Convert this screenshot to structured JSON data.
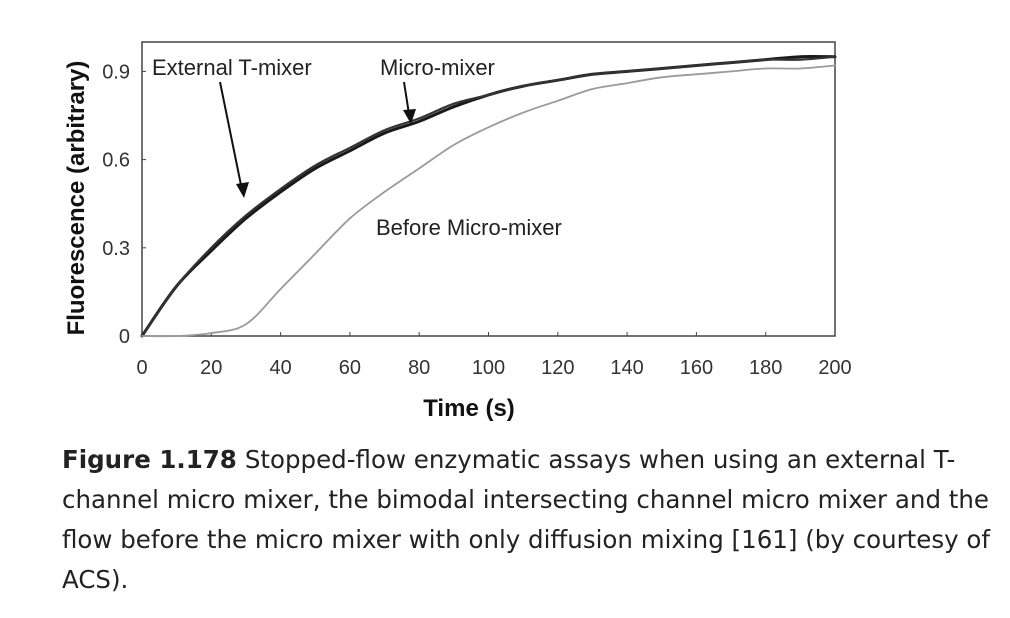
{
  "chart_data": {
    "type": "line",
    "title": "",
    "xlabel": "Time (s)",
    "ylabel": "Fluorescence (arbitrary)",
    "xlim": [
      0,
      200
    ],
    "ylim": [
      0,
      1.0
    ],
    "x_ticks": [
      0,
      20,
      40,
      60,
      80,
      100,
      120,
      140,
      160,
      180,
      200
    ],
    "y_ticks": [
      0,
      0.3,
      0.6,
      0.9
    ],
    "y_tick_labels": [
      "0",
      "0.3",
      "0.6",
      "0.9"
    ],
    "grid": false,
    "x": [
      0,
      10,
      20,
      30,
      40,
      50,
      60,
      70,
      80,
      90,
      100,
      110,
      120,
      130,
      140,
      150,
      160,
      170,
      180,
      190,
      200
    ],
    "series": [
      {
        "name": "External T-mixer",
        "color": "#1a1a1a",
        "values": [
          0.0,
          0.17,
          0.29,
          0.4,
          0.49,
          0.57,
          0.63,
          0.69,
          0.73,
          0.78,
          0.82,
          0.85,
          0.87,
          0.89,
          0.9,
          0.91,
          0.92,
          0.93,
          0.94,
          0.95,
          0.95
        ]
      },
      {
        "name": "Micro-mixer",
        "color": "#333333",
        "values": [
          0.0,
          0.17,
          0.3,
          0.41,
          0.5,
          0.58,
          0.64,
          0.7,
          0.74,
          0.79,
          0.82,
          0.85,
          0.87,
          0.89,
          0.9,
          0.91,
          0.92,
          0.93,
          0.94,
          0.94,
          0.95
        ]
      },
      {
        "name": "Before Micro-mixer",
        "color": "#9a9a9a",
        "values": [
          0.0,
          0.0,
          0.01,
          0.04,
          0.16,
          0.28,
          0.4,
          0.49,
          0.57,
          0.65,
          0.71,
          0.76,
          0.8,
          0.84,
          0.86,
          0.88,
          0.89,
          0.9,
          0.91,
          0.91,
          0.92
        ]
      }
    ],
    "annotations": [
      {
        "text": "External T-mixer",
        "points_to": {
          "x": 30,
          "y": 0.51
        }
      },
      {
        "text": "Micro-mixer",
        "points_to": {
          "x": 80,
          "y": 0.77
        }
      },
      {
        "text": "Before Micro-mixer"
      }
    ]
  },
  "caption": {
    "label": "Figure 1.178",
    "text": "Stopped-flow enzymatic assays when using an external T-channel micro mixer, the bimodal intersecting channel micro mixer and the flow before the micro mixer with only diffusion mixing [161] (by courtesy of ACS)."
  }
}
